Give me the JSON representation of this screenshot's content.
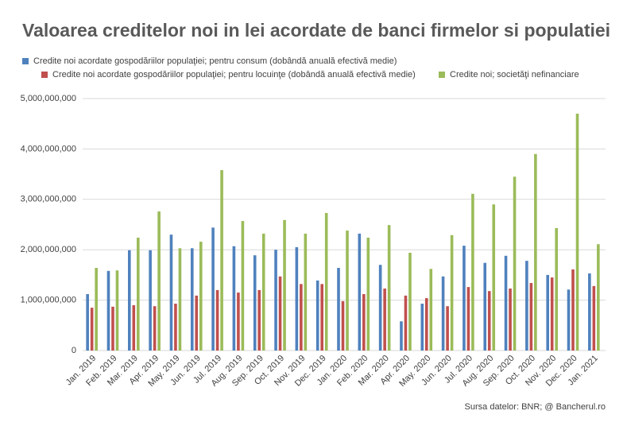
{
  "chart_data": {
    "type": "bar",
    "title": "Valoarea creditelor noi in lei acordate de banci firmelor si populatiei",
    "source": "Sursa datelor: BNR; @ Bancherul.ro",
    "categories": [
      "Jan. 2019",
      "Feb. 2019",
      "Mar. 2019",
      "Apr. 2019",
      "May. 2019",
      "Jun. 2019",
      "Jul. 2019",
      "Aug. 2019",
      "Sep. 2019",
      "Oct. 2019",
      "Nov. 2019",
      "Dec. 2019",
      "Jan. 2020",
      "Feb. 2020",
      "Mar. 2020",
      "Apr. 2020",
      "May. 2020",
      "Jun. 2020",
      "Jul. 2020",
      "Aug. 2020",
      "Sep. 2020",
      "Oct. 2020",
      "Nov. 2020",
      "Dec. 2020",
      "Jan. 2021"
    ],
    "series": [
      {
        "name": "Credite noi acordate gospodăriilor populaţiei; pentru consum (dobândă anuală efectivă medie)",
        "color": "#4f81bd",
        "values": [
          1120000000,
          1580000000,
          1990000000,
          1990000000,
          2300000000,
          2030000000,
          2440000000,
          2070000000,
          1890000000,
          2000000000,
          2050000000,
          1390000000,
          1640000000,
          2320000000,
          1700000000,
          580000000,
          930000000,
          1470000000,
          2080000000,
          1740000000,
          1880000000,
          1780000000,
          1500000000,
          1210000000,
          1530000000
        ]
      },
      {
        "name": "Credite noi acordate gospodăriilor populaţiei; pentru locuinţe (dobândă anuală efectivă medie)",
        "color": "#c0504d",
        "values": [
          850000000,
          870000000,
          900000000,
          880000000,
          930000000,
          1090000000,
          1200000000,
          1150000000,
          1200000000,
          1470000000,
          1320000000,
          1320000000,
          980000000,
          1120000000,
          1230000000,
          1090000000,
          1040000000,
          880000000,
          1260000000,
          1180000000,
          1230000000,
          1340000000,
          1450000000,
          1610000000,
          1280000000
        ]
      },
      {
        "name": "Credite noi; societăţi nefinanciare",
        "color": "#9bbb59",
        "values": [
          1640000000,
          1590000000,
          2240000000,
          2760000000,
          2030000000,
          2160000000,
          3580000000,
          2570000000,
          2320000000,
          2590000000,
          2320000000,
          2730000000,
          2380000000,
          2240000000,
          2490000000,
          1940000000,
          1620000000,
          2290000000,
          3110000000,
          2900000000,
          3450000000,
          3900000000,
          2430000000,
          4700000000,
          2110000000
        ]
      }
    ],
    "ylim": [
      0,
      5000000000
    ],
    "yticks": [
      0,
      {
        "value": 1000000000,
        "label": "1,000,000,000"
      },
      {
        "value": 2000000000,
        "label": "2,000,000,000"
      },
      {
        "value": 3000000000,
        "label": "3,000,000,000"
      },
      {
        "value": 4000000000,
        "label": "4,000,000,000"
      },
      {
        "value": 5000000000,
        "label": "5,000,000,000"
      }
    ],
    "grid": true,
    "legend": "top"
  }
}
